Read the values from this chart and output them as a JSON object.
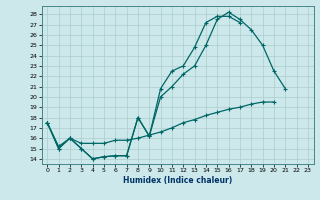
{
  "xlabel": "Humidex (Indice chaleur)",
  "bg_color": "#cce8ea",
  "grid_color": "#aacccc",
  "line_color": "#006666",
  "xlim": [
    -0.5,
    23.5
  ],
  "ylim": [
    13.5,
    28.8
  ],
  "xticks": [
    0,
    1,
    2,
    3,
    4,
    5,
    6,
    7,
    8,
    9,
    10,
    11,
    12,
    13,
    14,
    15,
    16,
    17,
    18,
    19,
    20,
    21,
    22,
    23
  ],
  "yticks": [
    14,
    15,
    16,
    17,
    18,
    19,
    20,
    21,
    22,
    23,
    24,
    25,
    26,
    27,
    28
  ],
  "line1_y": [
    17.5,
    15.0,
    16.0,
    15.0,
    14.0,
    14.2,
    14.3,
    14.3,
    18.0,
    16.2,
    20.0,
    21.0,
    22.2,
    23.0,
    25.0,
    27.5,
    28.2,
    27.5,
    26.5,
    25.0,
    22.5,
    20.8,
    null,
    null
  ],
  "line2_y": [
    17.5,
    15.0,
    16.0,
    15.0,
    14.0,
    14.2,
    14.3,
    14.3,
    18.0,
    16.2,
    20.8,
    22.5,
    23.0,
    24.8,
    27.2,
    27.8,
    27.8,
    27.2,
    null,
    null,
    null,
    null,
    null,
    null
  ],
  "line3_y": [
    17.5,
    15.2,
    16.0,
    15.5,
    15.5,
    15.5,
    15.8,
    15.8,
    16.0,
    16.3,
    16.6,
    17.0,
    17.5,
    17.8,
    18.2,
    18.5,
    18.8,
    19.0,
    19.3,
    19.5,
    19.5,
    null,
    null,
    null
  ],
  "tick_fontsize": 4.5,
  "line_width": 0.9,
  "marker_size": 3.5
}
